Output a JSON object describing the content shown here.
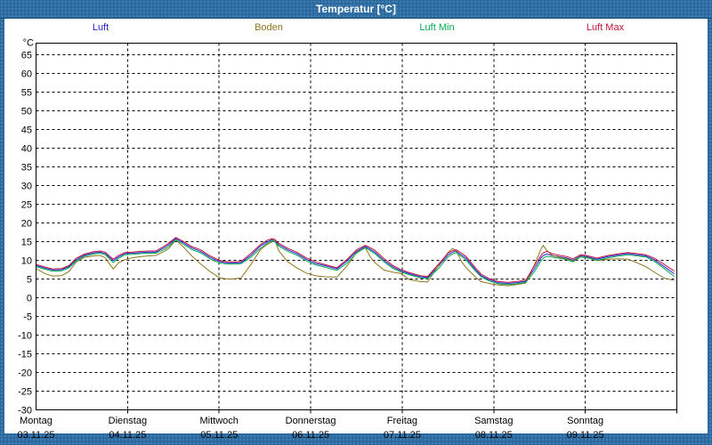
{
  "window": {
    "title": "Temperatur [°C]"
  },
  "legend": {
    "items": [
      {
        "label": "Luft",
        "color": "#2323cd"
      },
      {
        "label": "Boden",
        "color": "#8f751d"
      },
      {
        "label": "Luft Min",
        "color": "#00a94f"
      },
      {
        "label": "Luft Max",
        "color": "#c41240"
      }
    ]
  },
  "axes": {
    "unit": "°C",
    "y_ticks": [
      65,
      60,
      55,
      50,
      45,
      40,
      35,
      30,
      25,
      20,
      15,
      10,
      5,
      0,
      -5,
      -10,
      -15,
      -20,
      -25,
      -30
    ],
    "days": [
      {
        "name": "Montag",
        "date": "03.11.25"
      },
      {
        "name": "Dienstag",
        "date": "04.11.25"
      },
      {
        "name": "Mittwoch",
        "date": "05.11.25"
      },
      {
        "name": "Donnerstag",
        "date": "06.11.25"
      },
      {
        "name": "Freitag",
        "date": "07.11.25"
      },
      {
        "name": "Samstag",
        "date": "08.11.25"
      },
      {
        "name": "Sonntag",
        "date": "09.11.25"
      }
    ]
  },
  "chart_data": {
    "type": "line",
    "title": "Temperatur [°C]",
    "ylabel": "°C",
    "ylim": [
      -30,
      68
    ],
    "y_tick_step": 5,
    "x_unit": "days since Montag 03.11.25 00:00",
    "xlim": [
      0,
      7
    ],
    "grid": true,
    "legend_position": "top",
    "x_days": [
      0,
      0.1,
      0.18,
      0.28,
      0.36,
      0.44,
      0.53,
      0.63,
      0.7,
      0.757,
      0.8,
      0.844,
      0.9,
      0.971,
      1.05,
      1.15,
      1.23,
      1.31,
      1.4,
      1.45,
      1.525,
      1.6,
      1.7,
      1.8,
      1.9,
      2.0,
      2.06,
      2.12,
      2.18,
      2.24,
      2.35,
      2.45,
      2.52,
      2.576,
      2.61,
      2.65,
      2.75,
      2.848,
      2.95,
      3.05,
      3.15,
      3.286,
      3.4,
      3.5,
      3.597,
      3.65,
      3.7,
      3.8,
      3.9,
      3.986,
      4.08,
      4.2,
      4.278,
      4.4,
      4.5,
      4.55,
      4.589,
      4.65,
      4.7,
      4.8,
      4.862,
      4.95,
      5.056,
      5.15,
      5.25,
      5.35,
      5.45,
      5.52,
      5.542,
      5.581,
      5.65,
      5.7,
      5.8,
      5.864,
      5.95,
      6.01,
      6.126,
      6.25,
      6.35,
      6.467,
      6.56,
      6.661,
      6.75,
      6.856,
      6.972
    ],
    "series": [
      {
        "name": "Luft",
        "color": "#2323cd",
        "values": [
          8.6,
          7.9,
          7.4,
          7.5,
          8.3,
          10.2,
          11.4,
          12.0,
          12.2,
          11.8,
          10.8,
          9.9,
          10.9,
          11.8,
          11.9,
          12.1,
          12.2,
          12.2,
          13.4,
          14.2,
          15.8,
          14.8,
          13.3,
          12.4,
          10.8,
          9.7,
          9.4,
          9.3,
          9.3,
          9.4,
          11.4,
          13.8,
          14.9,
          15.5,
          15.2,
          14.2,
          12.8,
          11.8,
          10.3,
          9.2,
          8.6,
          7.7,
          9.9,
          12.4,
          13.7,
          13.0,
          12.2,
          10.0,
          8.2,
          7.2,
          6.4,
          5.6,
          5.4,
          8.6,
          11.4,
          12.2,
          12.5,
          11.4,
          10.5,
          7.5,
          5.9,
          4.8,
          4.0,
          3.8,
          4.0,
          4.4,
          8.0,
          10.8,
          11.3,
          11.7,
          11.2,
          11.0,
          10.6,
          10.0,
          11.2,
          11.0,
          10.3,
          11.0,
          11.4,
          11.8,
          11.5,
          11.2,
          10.2,
          8.4,
          6.4
        ]
      },
      {
        "name": "Boden",
        "color": "#8f751d",
        "values": [
          7.8,
          6.4,
          5.8,
          5.9,
          7.0,
          9.6,
          10.8,
          11.2,
          11.3,
          10.7,
          9.1,
          7.7,
          9.3,
          10.2,
          10.7,
          11.0,
          11.2,
          11.3,
          12.4,
          13.2,
          15.4,
          13.8,
          11.2,
          9.0,
          7.0,
          5.4,
          5.1,
          5.0,
          5.1,
          5.3,
          9.0,
          12.8,
          14.2,
          14.9,
          15.3,
          12.6,
          9.6,
          8.0,
          6.6,
          5.9,
          5.6,
          5.5,
          8.6,
          12.1,
          13.3,
          11.0,
          9.4,
          7.4,
          6.8,
          6.5,
          4.8,
          4.3,
          4.2,
          8.8,
          12.1,
          13.2,
          12.6,
          9.6,
          8.0,
          5.5,
          4.3,
          3.8,
          3.4,
          3.2,
          3.5,
          3.9,
          9.2,
          13.2,
          14.0,
          12.6,
          11.2,
          10.9,
          10.4,
          9.8,
          11.0,
          10.8,
          9.9,
          10.3,
          10.4,
          10.3,
          9.4,
          8.3,
          6.9,
          5.3,
          4.6
        ]
      },
      {
        "name": "Luft Min",
        "color": "#00a94f",
        "values": [
          8.3,
          7.6,
          7.1,
          7.2,
          8.0,
          9.8,
          11.1,
          11.7,
          11.9,
          11.5,
          10.4,
          9.4,
          10.5,
          11.5,
          11.6,
          11.8,
          11.9,
          11.9,
          12.9,
          13.7,
          15.5,
          14.4,
          12.9,
          12.0,
          10.4,
          9.3,
          9.1,
          9.0,
          9.0,
          9.1,
          10.9,
          13.2,
          14.5,
          15.2,
          14.9,
          13.8,
          12.4,
          11.4,
          9.9,
          8.8,
          8.2,
          7.3,
          9.3,
          11.9,
          13.4,
          12.6,
          11.8,
          9.6,
          7.8,
          6.9,
          6.1,
          5.3,
          5.1,
          7.9,
          10.9,
          11.7,
          12.1,
          11.0,
          10.0,
          7.1,
          5.6,
          4.5,
          3.7,
          3.5,
          3.7,
          4.1,
          7.2,
          10.0,
          10.6,
          11.1,
          10.8,
          10.6,
          10.2,
          9.6,
          10.9,
          10.7,
          10.0,
          10.7,
          11.1,
          11.5,
          11.2,
          10.9,
          9.8,
          7.9,
          5.7
        ]
      },
      {
        "name": "Luft Max",
        "color": "#c41240",
        "values": [
          8.9,
          8.2,
          7.7,
          7.8,
          8.6,
          10.6,
          11.7,
          12.3,
          12.5,
          12.2,
          11.2,
          10.3,
          11.3,
          12.1,
          12.2,
          12.4,
          12.5,
          12.5,
          13.8,
          14.6,
          16.1,
          15.2,
          13.7,
          12.8,
          11.2,
          10.0,
          9.7,
          9.6,
          9.6,
          9.7,
          11.9,
          14.2,
          15.3,
          15.8,
          15.6,
          14.6,
          13.2,
          12.2,
          10.7,
          9.6,
          8.9,
          8.0,
          10.3,
          12.8,
          14.0,
          13.4,
          12.7,
          10.5,
          8.6,
          7.5,
          6.7,
          5.9,
          5.7,
          9.1,
          11.9,
          12.6,
          12.8,
          11.9,
          11.0,
          8.0,
          6.3,
          5.1,
          4.3,
          4.1,
          4.3,
          4.7,
          8.8,
          11.5,
          12.0,
          12.4,
          11.7,
          11.4,
          11.0,
          10.4,
          11.5,
          11.3,
          10.6,
          11.3,
          11.7,
          12.1,
          11.8,
          11.5,
          10.6,
          9.0,
          7.1
        ]
      }
    ]
  }
}
